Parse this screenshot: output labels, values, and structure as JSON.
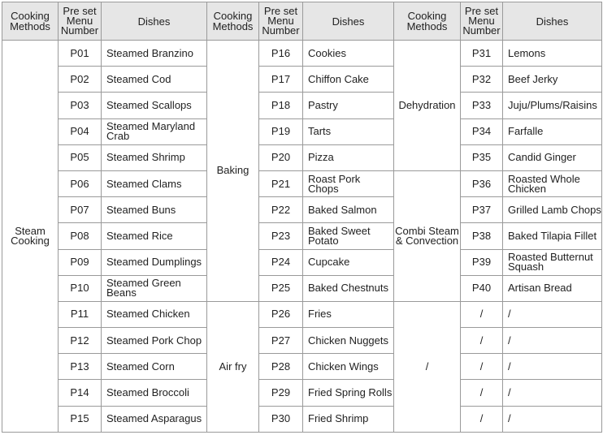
{
  "headers": {
    "method": "Cooking Methods",
    "number": "Pre set Menu Number",
    "dish": "Dishes"
  },
  "groups": [
    {
      "methods": [
        {
          "label": "Steam Cooking",
          "rows": [
            [
              "P01",
              "Steamed Branzino"
            ],
            [
              "P02",
              "Steamed Cod"
            ],
            [
              "P03",
              "Steamed Scallops"
            ],
            [
              "P04",
              "Steamed Maryland Crab"
            ],
            [
              "P05",
              "Steamed Shrimp"
            ],
            [
              "P06",
              "Steamed Clams"
            ],
            [
              "P07",
              "Steamed Buns"
            ],
            [
              "P08",
              "Steamed Rice"
            ],
            [
              "P09",
              "Steamed Dumplings"
            ],
            [
              "P10",
              "Steamed Green Beans"
            ],
            [
              "P11",
              "Steamed Chicken"
            ],
            [
              "P12",
              "Steamed Pork Chop"
            ],
            [
              "P13",
              "Steamed Corn"
            ],
            [
              "P14",
              "Steamed Broccoli"
            ],
            [
              "P15",
              "Steamed Asparagus"
            ]
          ]
        }
      ]
    },
    {
      "methods": [
        {
          "label": "Baking",
          "rows": [
            [
              "P16",
              "Cookies"
            ],
            [
              "P17",
              "Chiffon Cake"
            ],
            [
              "P18",
              "Pastry"
            ],
            [
              "P19",
              "Tarts"
            ],
            [
              "P20",
              "Pizza"
            ],
            [
              "P21",
              "Roast Pork Chops"
            ],
            [
              "P22",
              "Baked Salmon"
            ],
            [
              "P23",
              "Baked Sweet Potato"
            ],
            [
              "P24",
              "Cupcake"
            ],
            [
              "P25",
              "Baked Chestnuts"
            ]
          ]
        },
        {
          "label": "Air fry",
          "rows": [
            [
              "P26",
              "Fries"
            ],
            [
              "P27",
              "Chicken Nuggets"
            ],
            [
              "P28",
              "Chicken Wings"
            ],
            [
              "P29",
              "Fried Spring Rolls"
            ],
            [
              "P30",
              "Fried Shrimp"
            ]
          ]
        }
      ]
    },
    {
      "methods": [
        {
          "label": "Dehydration",
          "rows": [
            [
              "P31",
              "Lemons"
            ],
            [
              "P32",
              "Beef Jerky"
            ],
            [
              "P33",
              "Juju/Plums/Raisins"
            ],
            [
              "P34",
              "Farfalle"
            ],
            [
              "P35",
              "Candid Ginger"
            ]
          ]
        },
        {
          "label": "Combi Steam & Convection",
          "rows": [
            [
              "P36",
              "Roasted Whole Chicken"
            ],
            [
              "P37",
              "Grilled Lamb Chops"
            ],
            [
              "P38",
              "Baked Tilapia Fillet"
            ],
            [
              "P39",
              "Roasted Butternut Squash"
            ],
            [
              "P40",
              "Artisan Bread"
            ]
          ]
        },
        {
          "label": "/",
          "rows": [
            [
              "/",
              "/"
            ],
            [
              "/",
              "/"
            ],
            [
              "/",
              "/"
            ],
            [
              "/",
              "/"
            ],
            [
              "/",
              "/"
            ]
          ]
        }
      ]
    }
  ]
}
